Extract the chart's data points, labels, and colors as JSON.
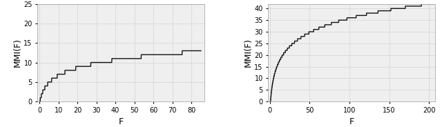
{
  "left": {
    "xlabel": "F",
    "ylabel": "MMI(F)",
    "xlim": [
      -1,
      87
    ],
    "ylim": [
      0,
      25
    ],
    "xticks": [
      0,
      10,
      20,
      30,
      40,
      50,
      60,
      70,
      80
    ],
    "yticks": [
      0,
      5,
      10,
      15,
      20,
      25
    ]
  },
  "right": {
    "xlabel": "F",
    "ylabel": "MMI(F)",
    "xlim": [
      -2,
      208
    ],
    "ylim": [
      0,
      42
    ],
    "xticks": [
      0,
      50,
      100,
      150,
      200
    ],
    "yticks": [
      0,
      5,
      10,
      15,
      20,
      25,
      30,
      35,
      40
    ]
  },
  "line_color": "#111111",
  "line_width": 1.0,
  "grid_color": "#d8d8d8",
  "background_color": "#efefef",
  "tick_labelsize": 7,
  "axis_labelsize": 9
}
